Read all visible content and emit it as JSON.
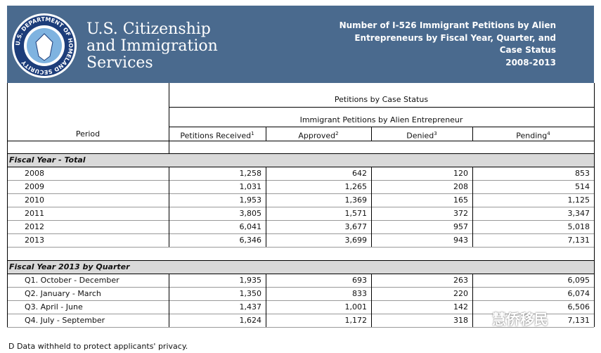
{
  "header": {
    "seal_text": "U.S. DEPARTMENT OF HOMELAND SECURITY",
    "agency_lines": [
      "U.S. Citizenship",
      "and Immigration",
      "Services"
    ],
    "title_lines": [
      "Number of I-526 Immigrant Petitions by Alien",
      "Entrepreneurs by Fiscal Year, Quarter, and",
      "Case Status",
      "2008-2013"
    ]
  },
  "table": {
    "group_header": "Petitions by Case Status",
    "subgroup_header": "Immigrant Petitions by Alien Entrepreneur",
    "period_header": "Period",
    "columns": [
      {
        "label": "Petitions Received",
        "note": "1"
      },
      {
        "label": "Approved",
        "note": "2"
      },
      {
        "label": "Denied",
        "note": "3"
      },
      {
        "label": "Pending",
        "note": "4"
      }
    ],
    "sections": [
      {
        "title": "Fiscal Year - Total",
        "rows": [
          [
            "2008",
            "1,258",
            "642",
            "120",
            "853"
          ],
          [
            "2009",
            "1,031",
            "1,265",
            "208",
            "514"
          ],
          [
            "2010",
            "1,953",
            "1,369",
            "165",
            "1,125"
          ],
          [
            "2011",
            "3,805",
            "1,571",
            "372",
            "3,347"
          ],
          [
            "2012",
            "6,041",
            "3,677",
            "957",
            "5,018"
          ],
          [
            "2013",
            "6,346",
            "3,699",
            "943",
            "7,131"
          ]
        ]
      },
      {
        "title": "Fiscal Year 2013 by Quarter",
        "rows": [
          [
            "Q1. October - December",
            "1,935",
            "693",
            "263",
            "6,095"
          ],
          [
            "Q2. January - March",
            "1,350",
            "833",
            "220",
            "6,074"
          ],
          [
            "Q3. April - June",
            "1,437",
            "1,001",
            "142",
            "6,506"
          ],
          [
            "Q4. July - September",
            "1,624",
            "1,172",
            "318",
            "7,131"
          ]
        ]
      }
    ]
  },
  "footnote": "D  Data withheld to protect applicants' privacy.",
  "watermark": "慧侨移民"
}
